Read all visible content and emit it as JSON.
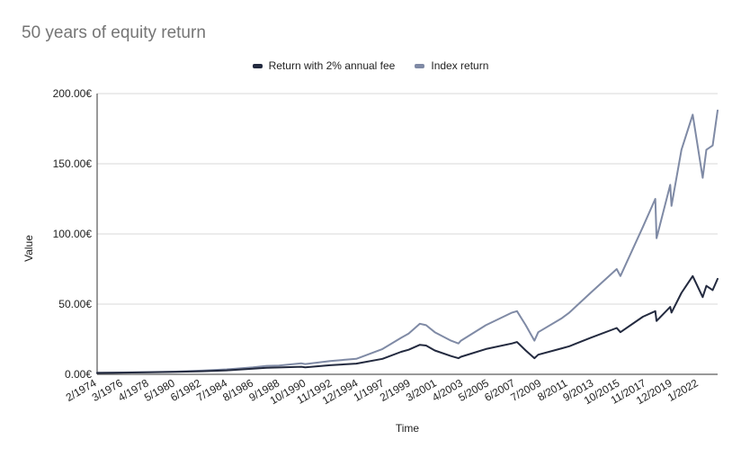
{
  "chart_data": {
    "type": "line",
    "title": "50 years of equity return",
    "xlabel": "Time",
    "ylabel": "Value",
    "ylim": [
      0,
      200
    ],
    "y_ticks": [
      "0.00€",
      "50.00€",
      "100.00€",
      "150.00€",
      "200.00€"
    ],
    "x_ticks": [
      "2/1974",
      "3/1976",
      "4/1978",
      "5/1980",
      "6/1982",
      "7/1984",
      "8/1986",
      "9/1988",
      "10/1990",
      "11/1992",
      "12/1994",
      "1/1997",
      "2/1999",
      "3/2001",
      "4/2003",
      "5/2005",
      "6/2007",
      "7/2009",
      "8/2011",
      "9/2013",
      "10/2015",
      "11/2017",
      "12/2019",
      "1/2022"
    ],
    "legend_position": "top-center",
    "grid": "horizontal",
    "x": [
      1974.1,
      1976.2,
      1978.3,
      1980.4,
      1982.5,
      1984.5,
      1986.6,
      1987.7,
      1988.7,
      1990.5,
      1990.8,
      1992.8,
      1994.9,
      1997.0,
      1998.5,
      1999.1,
      2000.0,
      2000.5,
      2001.2,
      2002.5,
      2003.1,
      2003.3,
      2005.3,
      2007.4,
      2007.8,
      2008.5,
      2009.2,
      2009.5,
      2011.4,
      2012.0,
      2013.7,
      2015.8,
      2016.1,
      2017.9,
      2018.9,
      2019.0,
      2020.1,
      2020.2,
      2021.0,
      2021.9,
      2022.7,
      2023.0,
      2023.5,
      2023.9
    ],
    "series": [
      {
        "name": "Return with 2% annual fee",
        "color": "#232a3f",
        "values": [
          1.0,
          1.2,
          1.4,
          1.7,
          2.2,
          2.8,
          4.0,
          4.6,
          4.9,
          5.4,
          5.0,
          6.5,
          7.6,
          11.0,
          16.0,
          17.5,
          21.0,
          20.5,
          17.0,
          13.0,
          11.5,
          12.5,
          18.0,
          22.0,
          23.0,
          17.0,
          11.5,
          14.0,
          18.5,
          20.0,
          26.0,
          33.0,
          30.0,
          41.0,
          45.0,
          38.0,
          48.0,
          44.0,
          58.0,
          70.0,
          55.0,
          63.0,
          60.0,
          68.0
        ]
      },
      {
        "name": "Index return",
        "color": "#7f8aa5",
        "values": [
          1.0,
          1.3,
          1.6,
          1.9,
          2.6,
          3.5,
          5.0,
          6.0,
          6.3,
          7.8,
          7.3,
          9.5,
          11.0,
          18.0,
          26.0,
          29.0,
          36.0,
          35.0,
          30.0,
          24.0,
          22.0,
          24.0,
          35.0,
          44.0,
          45.0,
          35.0,
          24.0,
          30.0,
          40.0,
          44.0,
          58.0,
          75.0,
          70.0,
          105.0,
          125.0,
          97.0,
          135.0,
          120.0,
          160.0,
          185.0,
          140.0,
          160.0,
          163.0,
          188.0
        ]
      }
    ]
  }
}
